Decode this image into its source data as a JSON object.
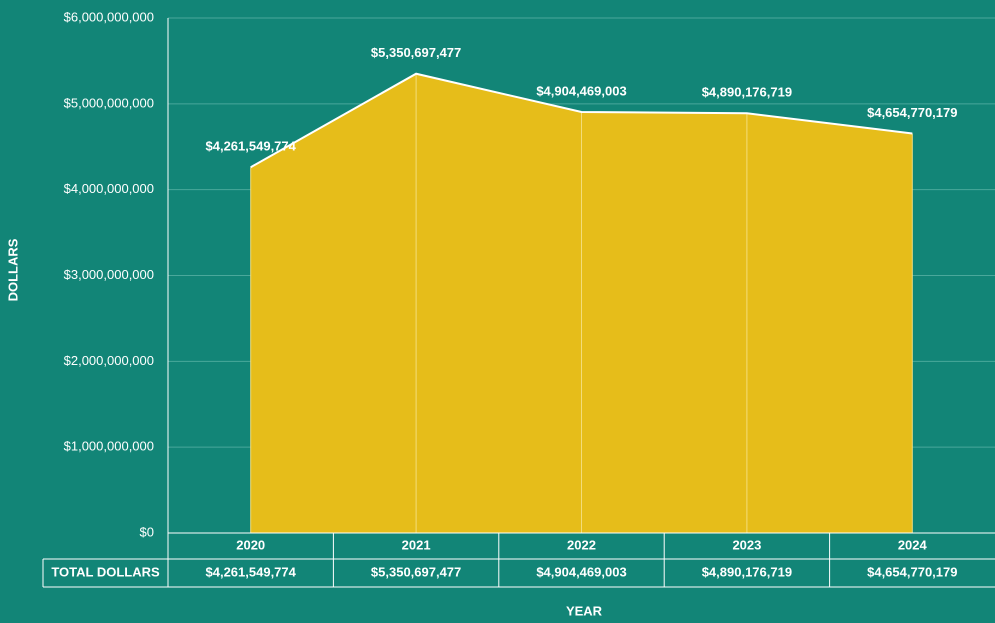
{
  "chart_data": {
    "type": "area",
    "x_label": "YEAR",
    "y_label": "DOLLARS",
    "categories": [
      "2020",
      "2021",
      "2022",
      "2023",
      "2024"
    ],
    "values": [
      4261549774,
      5350697477,
      4904469003,
      4890176719,
      4654770179
    ],
    "value_labels": [
      "$4,261,549,774",
      "$5,350,697,477",
      "$4,904,469,003",
      "$4,890,176,719",
      "$4,654,770,179"
    ],
    "color": "#e6bd1a",
    "ylim": [
      0,
      6000000000
    ],
    "yticks": [
      {
        "value": 0,
        "label": "$0"
      },
      {
        "value": 1000000000,
        "label": "$1,000,000,000"
      },
      {
        "value": 2000000000,
        "label": "$2,000,000,000"
      },
      {
        "value": 3000000000,
        "label": "$3,000,000,000"
      },
      {
        "value": 4000000000,
        "label": "$4,000,000,000"
      },
      {
        "value": 5000000000,
        "label": "$5,000,000,000"
      },
      {
        "value": 6000000000,
        "label": "$6,000,000,000"
      }
    ],
    "grid": true,
    "table_row_label": "TOTAL DOLLARS"
  }
}
